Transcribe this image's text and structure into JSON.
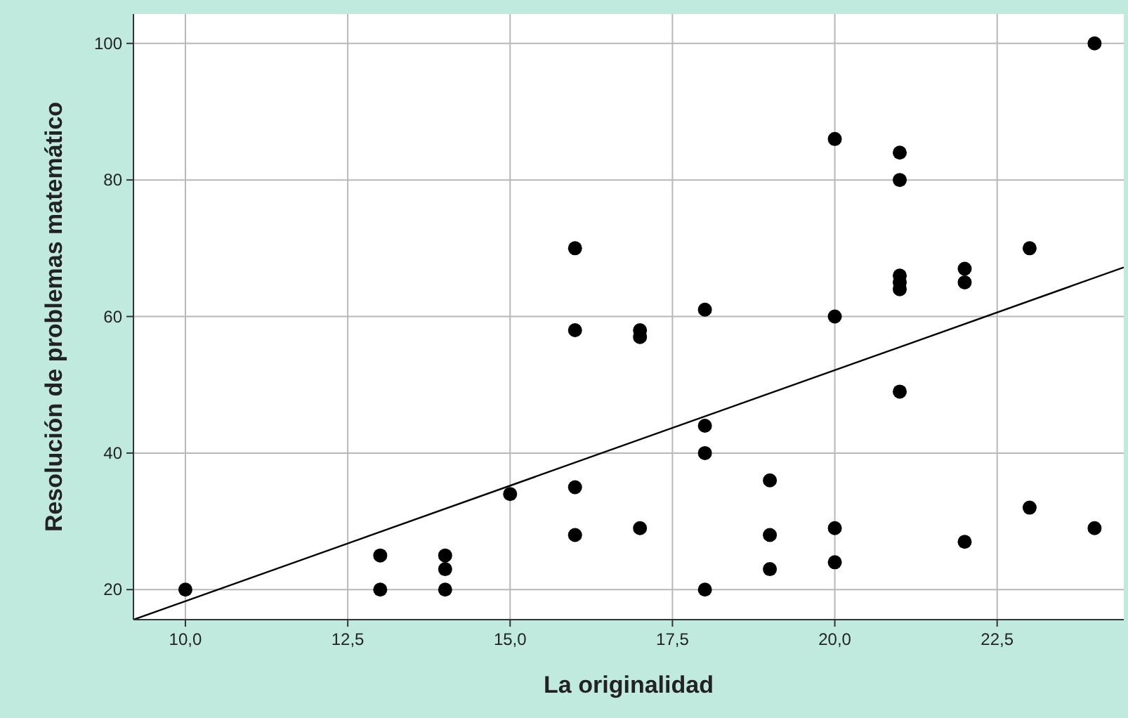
{
  "chart_data": {
    "type": "scatter",
    "xlabel": "La originalidad",
    "ylabel": "Resolución de problemas matemático",
    "xlim": [
      9.2,
      24.45
    ],
    "ylim": [
      15.6,
      104.3
    ],
    "xticks": [
      {
        "value": 10,
        "label": "10,0"
      },
      {
        "value": 12.5,
        "label": "12,5"
      },
      {
        "value": 15,
        "label": "15,0"
      },
      {
        "value": 17.5,
        "label": "17,5"
      },
      {
        "value": 20,
        "label": "20,0"
      },
      {
        "value": 22.5,
        "label": "22,5"
      }
    ],
    "yticks": [
      20,
      40,
      60,
      80,
      100
    ],
    "grid": true,
    "series": [
      {
        "marker": "circle",
        "color": "#000000",
        "x": [
          10,
          13,
          13,
          14,
          14,
          14,
          15,
          16,
          16,
          16,
          16,
          17,
          17,
          17,
          18,
          18,
          18,
          18,
          19,
          19,
          19,
          20,
          20,
          20,
          20,
          21,
          21,
          21,
          21,
          21,
          21,
          22,
          22,
          22,
          23,
          23,
          24,
          24
        ],
        "values": [
          20,
          25,
          20,
          25,
          23,
          20,
          34,
          70,
          58,
          35,
          28,
          58,
          57,
          29,
          61,
          44,
          40,
          20,
          36,
          28,
          23,
          86,
          60,
          29,
          24,
          84,
          80,
          66,
          65,
          64,
          49,
          67,
          65,
          27,
          70,
          32,
          100,
          29
        ]
      },
      {
        "type": "line",
        "color": "#000000",
        "x": [
          9.2,
          24.45
        ],
        "values": [
          15.6,
          67.2
        ]
      }
    ]
  }
}
